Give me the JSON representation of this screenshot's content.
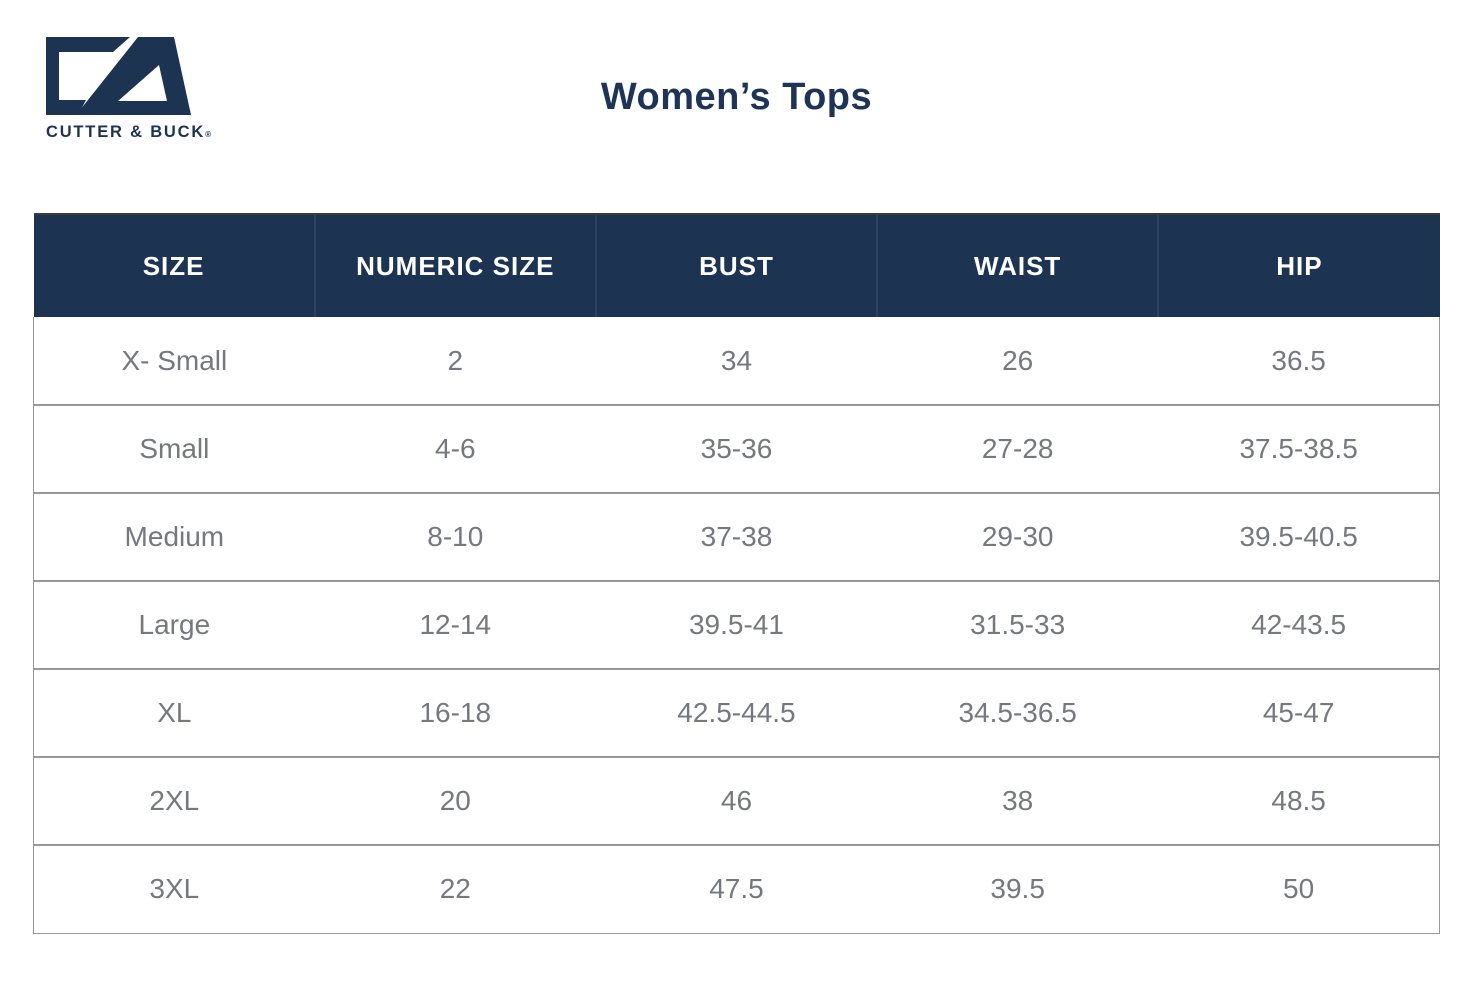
{
  "brand": {
    "wordmark": "CUTTER & BUCK",
    "reg_mark": "®"
  },
  "title": "Women’s Tops",
  "colors": {
    "navy": "#1c3352",
    "header_text": "#ffffff",
    "body_text": "#75787d",
    "row_border": "#979797",
    "header_top_border": "#3e3c32",
    "header_divider": "#2c4263",
    "title_color": "#1d3456"
  },
  "table": {
    "columns": [
      "SIZE",
      "NUMERIC SIZE",
      "BUST",
      "WAIST",
      "HIP"
    ],
    "rows": [
      [
        "X- Small",
        "2",
        "34",
        "26",
        "36.5"
      ],
      [
        "Small",
        "4-6",
        "35-36",
        "27-28",
        "37.5-38.5"
      ],
      [
        "Medium",
        "8-10",
        "37-38",
        "29-30",
        "39.5-40.5"
      ],
      [
        "Large",
        "12-14",
        "39.5-41",
        "31.5-33",
        "42-43.5"
      ],
      [
        "XL",
        "16-18",
        "42.5-44.5",
        "34.5-36.5",
        "45-47"
      ],
      [
        "2XL",
        "20",
        "46",
        "38",
        "48.5"
      ],
      [
        "3XL",
        "22",
        "47.5",
        "39.5",
        "50"
      ]
    ]
  }
}
